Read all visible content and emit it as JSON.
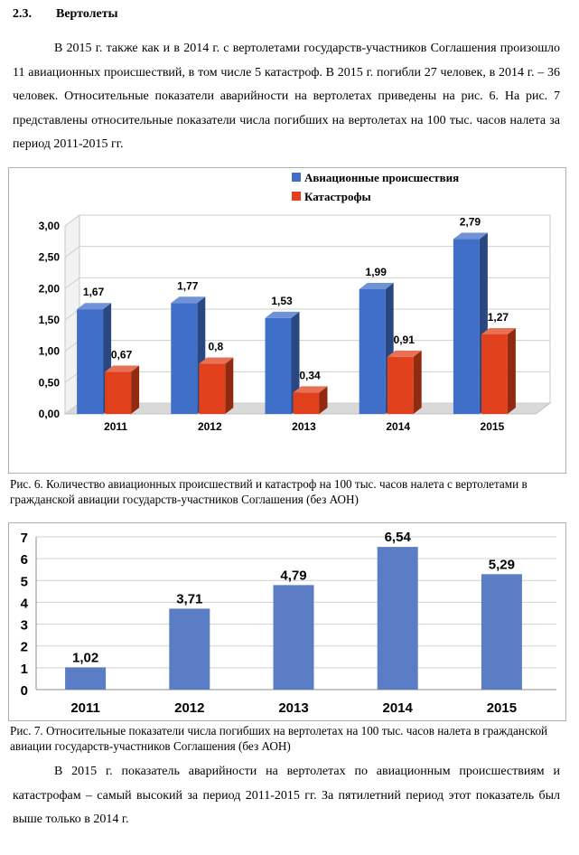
{
  "section": {
    "number": "2.3.",
    "title": "Вертолеты"
  },
  "paragraph1": "В 2015 г. также как и в 2014 г. с вертолетами государств-участников Соглашения произошло 11 авиационных происшествий, в том числе 5 катастроф. В 2015 г. погибли 27 человек, в 2014 г. – 36 человек. Относительные показатели аварийности на вертолетах приведены на рис. 6. На рис. 7 представлены относительные показатели числа погибших на вертолетах на 100 тыс. часов налета за период 2011-2015 гг.",
  "caption1": "Рис. 6. Количество авиационных происшествий и катастроф на 100 тыс. часов налета с вертолетами  в гражданской авиации государств-участников  Соглашения  (без АОН)",
  "caption2": "Рис. 7. Относительные показатели числа погибших на вертолетах на 100 тыс. часов налета в гражданской авиации государств-участников  Соглашения  (без АОН)",
  "paragraph2": "В 2015 г. показатель аварийности на вертолетах по авиационным происшествиям и катастрофам – самый высокий за период 2011-2015 гг. За пятилетний период этот показатель  был выше только в 2014 г.",
  "chart_data": [
    {
      "type": "bar",
      "categories": [
        "2011",
        "2012",
        "2013",
        "2014",
        "2015"
      ],
      "series": [
        {
          "name": "Авиационные происшествия",
          "values": [
            1.67,
            1.77,
            1.53,
            1.99,
            2.79
          ],
          "labels": [
            "1,67",
            "1,77",
            "1,53",
            "1,99",
            "2,79"
          ],
          "color": "#3f6fc8"
        },
        {
          "name": "Катастрофы",
          "values": [
            0.67,
            0.8,
            0.34,
            0.91,
            1.27
          ],
          "labels": [
            "0,67",
            "0,8",
            "0,34",
            "0,91",
            "1,27"
          ],
          "color": "#e0401c"
        }
      ],
      "ylim": [
        0,
        3
      ],
      "yticks": [
        0,
        0.5,
        1,
        1.5,
        2,
        2.5,
        3
      ],
      "yticklabels": [
        "0,00",
        "0,50",
        "1,00",
        "1,50",
        "2,00",
        "2,50",
        "3,00"
      ],
      "grid": true,
      "style": "3d",
      "legend": "top-right"
    },
    {
      "type": "bar",
      "categories": [
        "2011",
        "2012",
        "2013",
        "2014",
        "2015"
      ],
      "series": [
        {
          "values": [
            1.02,
            3.71,
            4.79,
            6.54,
            5.29
          ],
          "labels": [
            "1,02",
            "3,71",
            "4,79",
            "6,54",
            "5,29"
          ],
          "color": "#5b7dc6"
        }
      ],
      "ylim": [
        0,
        7
      ],
      "yticks": [
        0,
        1,
        2,
        3,
        4,
        5,
        6,
        7
      ],
      "yticklabels": [
        "0",
        "1",
        "2",
        "3",
        "4",
        "5",
        "6",
        "7"
      ],
      "grid": true
    }
  ]
}
